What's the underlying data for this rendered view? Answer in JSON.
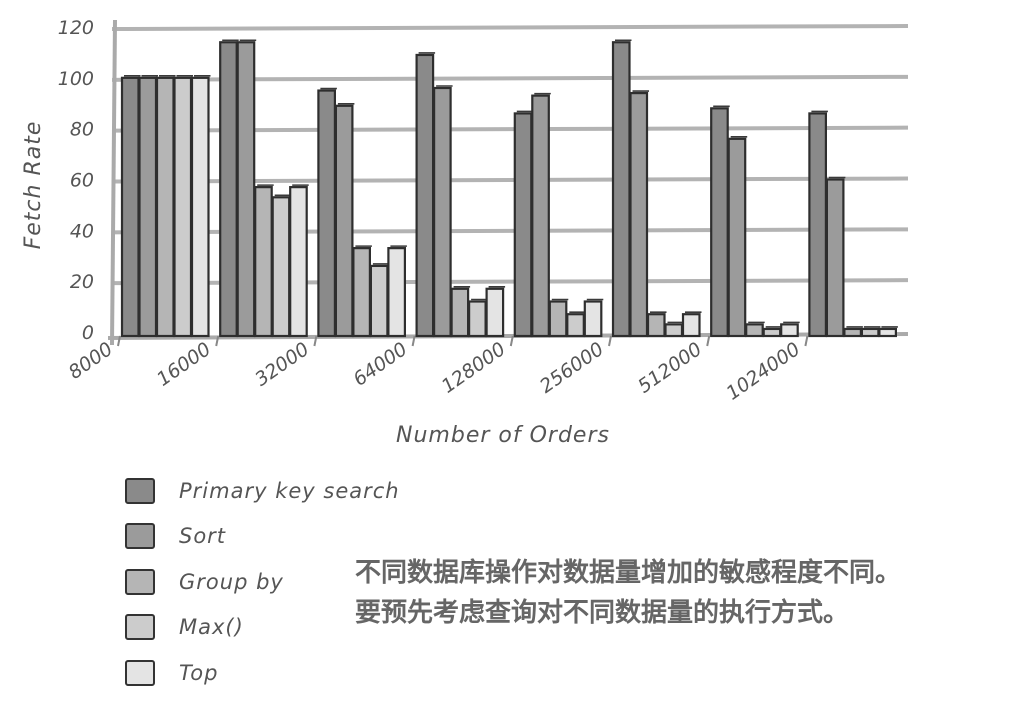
{
  "chart_data": {
    "type": "bar",
    "categories": [
      "8000",
      "16000",
      "32000",
      "64000",
      "128000",
      "256000",
      "512000",
      "1024000"
    ],
    "series": [
      {
        "name": "Primary key search",
        "color": "#8a8a8a",
        "values": [
          100,
          114,
          95,
          109,
          86,
          114,
          88,
          86
        ]
      },
      {
        "name": "Sort",
        "color": "#9b9b9b",
        "values": [
          100,
          114,
          89,
          96,
          93,
          94,
          76,
          60
        ]
      },
      {
        "name": "Group by",
        "color": "#b5b5b5",
        "values": [
          100,
          57,
          33,
          17,
          12,
          7,
          3,
          0
        ]
      },
      {
        "name": "Max()",
        "color": "#cccccc",
        "values": [
          100,
          53,
          26,
          12,
          7,
          3,
          1,
          0
        ]
      },
      {
        "name": "Top",
        "color": "#e4e4e4",
        "values": [
          100,
          57,
          33,
          17,
          12,
          7,
          3,
          0
        ]
      }
    ],
    "xlabel": "Number of Orders",
    "ylabel": "Fetch Rate",
    "ylim": [
      0,
      120
    ],
    "yticks": [
      "0",
      "20",
      "40",
      "60",
      "80",
      "100",
      "120"
    ],
    "grid": true,
    "legend": "bottom-left"
  },
  "note": {
    "line1": "不同数据库操作对数据量增加的敏感程度不同。",
    "line2": "要预先考虑查询对不同数据量的执行方式。"
  }
}
